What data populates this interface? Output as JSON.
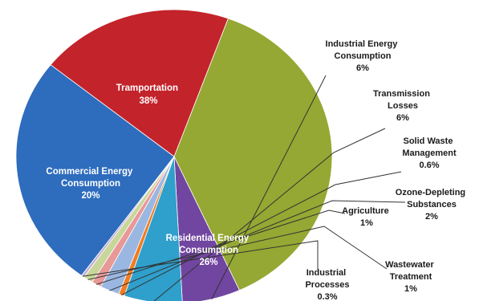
{
  "chart_data": {
    "type": "pie",
    "title": "",
    "slices": [
      {
        "name": "Tramportation",
        "value_label": "38%",
        "value": 38,
        "color": "#94a833"
      },
      {
        "name": "Industrial Energy Consumption",
        "value_label": "6%",
        "value": 6,
        "color": "#7146a0"
      },
      {
        "name": "Transmission Losses",
        "value_label": "6%",
        "value": 6,
        "color": "#2f9fcc"
      },
      {
        "name": "Solid Waste Management",
        "value_label": "0.6%",
        "value": 0.6,
        "color": "#f07c22"
      },
      {
        "name": "Ozone-Depleting Substances",
        "value_label": "2%",
        "value": 2,
        "color": "#9ab7e2"
      },
      {
        "name": "Agriculture",
        "value_label": "1%",
        "value": 1,
        "color": "#e99898"
      },
      {
        "name": "Wastewater Treatment",
        "value_label": "1%",
        "value": 1,
        "color": "#c8d69a"
      },
      {
        "name": "Industrial Processes",
        "value_label": "0.3%",
        "value": 0.3,
        "color": "#c3aed6"
      },
      {
        "name": "Residential Energy Consumption",
        "value_label": "26%",
        "value": 26,
        "color": "#2e6cbd"
      },
      {
        "name": "Commercial Energy Consumption",
        "value_label": "20%",
        "value": 20,
        "color": "#c3232b"
      }
    ]
  }
}
